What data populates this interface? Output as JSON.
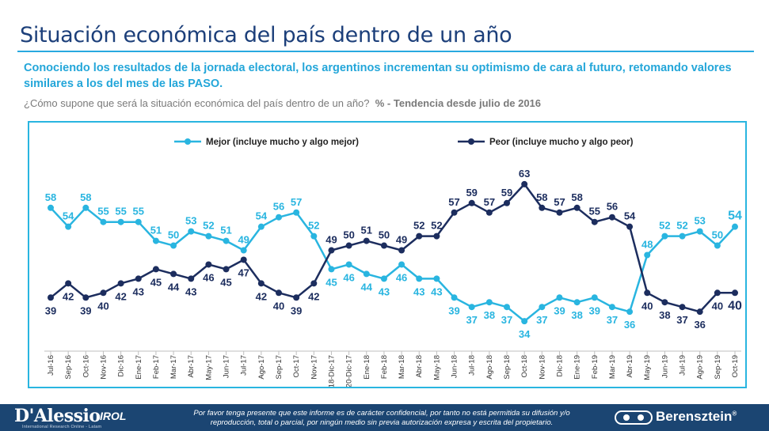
{
  "header": {
    "title": "Situación económica del país dentro de un año",
    "subtitle": "Conociendo los resultados de la jornada electoral, los argentinos incrementan su optimismo de cara al futuro, retomando valores similares a los del mes de las PASO.",
    "question": "¿Cómo supone que será la situación económica del país dentro de un año?",
    "trend_label": "% - Tendencia desde julio de 2016"
  },
  "chart_data": {
    "type": "line",
    "categories": [
      "Jul-16",
      "Sep-16",
      "Oct-16",
      "Nov-16",
      "Dic-16",
      "Ene-17",
      "Feb-17",
      "Mar-17",
      "Abr-17",
      "May-17",
      "Jun-17",
      "Jul-17",
      "Ago-17",
      "Sep-17",
      "Oct-17",
      "Nov-17",
      "18-Dic-17",
      "20-Dic-17",
      "Ene-18",
      "Feb-18",
      "Mar-18",
      "Abr-18",
      "May-18",
      "Jun-18",
      "Jul-18",
      "Ago-18",
      "Sep-18",
      "Oct-18",
      "Nov-18",
      "Dic-18",
      "Ene-19",
      "Feb-19",
      "Mar-19",
      "Abr-19",
      "May-19",
      "Jun-19",
      "Jul-19",
      "Ago-19",
      "Sep-19",
      "Oct-19"
    ],
    "series": [
      {
        "name": "Mejor (incluye mucho y algo mejor)",
        "color": "#29b5e0",
        "values": [
          58,
          54,
          58,
          55,
          55,
          55,
          51,
          50,
          53,
          52,
          51,
          49,
          54,
          56,
          57,
          52,
          45,
          46,
          44,
          43,
          46,
          43,
          43,
          39,
          37,
          38,
          37,
          34,
          37,
          39,
          38,
          39,
          37,
          36,
          48,
          52,
          52,
          53,
          50,
          54
        ]
      },
      {
        "name": "Peor (incluye mucho y algo peor)",
        "color": "#1c2d5e",
        "values": [
          39,
          42,
          39,
          40,
          42,
          43,
          45,
          44,
          43,
          46,
          45,
          47,
          42,
          40,
          39,
          42,
          49,
          50,
          51,
          50,
          49,
          52,
          52,
          57,
          59,
          57,
          59,
          63,
          58,
          57,
          58,
          55,
          56,
          54,
          40,
          38,
          37,
          36,
          40,
          40
        ]
      }
    ],
    "ylim": [
      30,
      66
    ],
    "legend_position": "top"
  },
  "footer": {
    "logo_left_name": "D'Alessio",
    "logo_left_suffix": "IROL",
    "logo_left_tagline": "International Research Online - Latam",
    "disclaimer": "Por favor tenga presente que este informe es de carácter confidencial, por tanto no está permitida su difusión y/o reproducción, total o parcial, por ningún medio sin previa autorización expresa y escrita del propietario.",
    "logo_right_name": "Berensztein",
    "logo_right_mark": "®"
  }
}
